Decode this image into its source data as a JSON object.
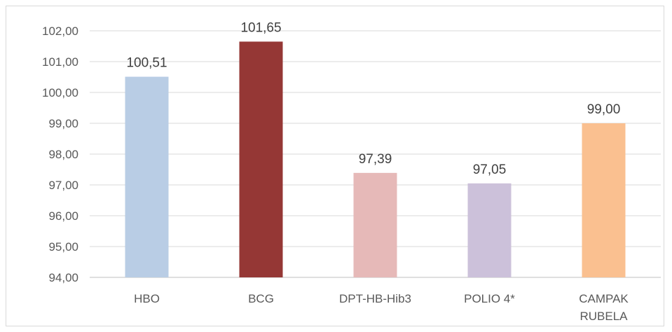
{
  "chart_data": {
    "type": "bar",
    "title": "",
    "xlabel": "",
    "ylabel": "",
    "categories": [
      [
        "HBO"
      ],
      [
        "BCG"
      ],
      [
        "DPT-HB-Hib3"
      ],
      [
        "POLIO 4*"
      ],
      [
        "CAMPAK",
        "RUBELA"
      ]
    ],
    "values": [
      100.51,
      101.65,
      97.39,
      97.05,
      99.0
    ],
    "value_labels": [
      "100,51",
      "101,65",
      "97,39",
      "97,05",
      "99,00"
    ],
    "colors": [
      "#b9cde5",
      "#953735",
      "#e6b9b8",
      "#ccc1da",
      "#fac090"
    ],
    "ylim": [
      94,
      102
    ],
    "y_ticks": [
      "94,00",
      "95,00",
      "96,00",
      "97,00",
      "98,00",
      "99,00",
      "100,00",
      "101,00",
      "102,00"
    ],
    "grid": true,
    "legend": "none"
  }
}
